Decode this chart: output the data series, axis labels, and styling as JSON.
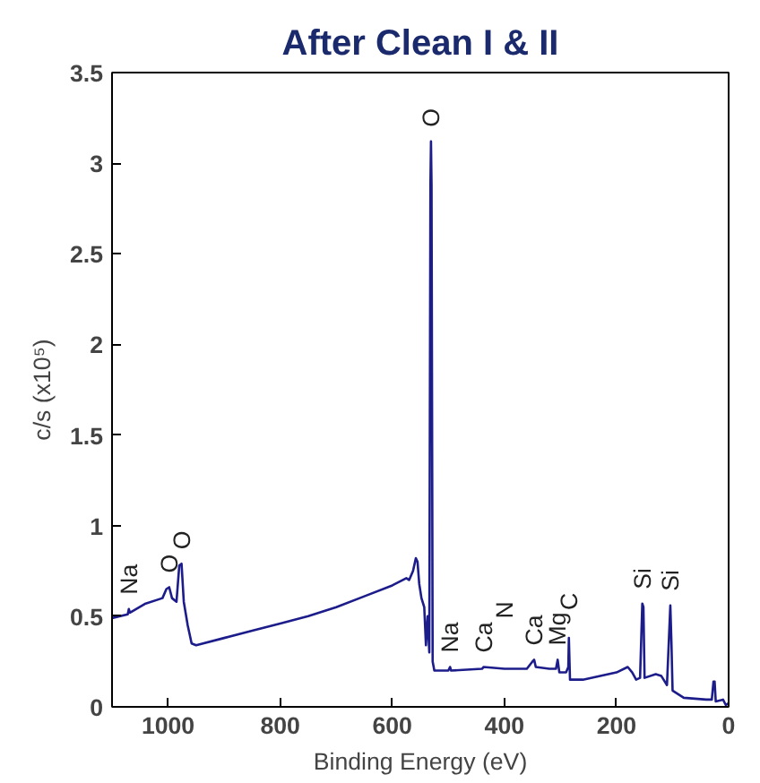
{
  "chart_data": {
    "type": "line",
    "title": "After Clean I & II",
    "xlabel": "Binding Energy (eV)",
    "ylabel": "c/s (x10⁵)",
    "xlim": [
      1100,
      0
    ],
    "xticks": [
      1000,
      800,
      600,
      400,
      200,
      0
    ],
    "ylim": [
      0,
      3.5
    ],
    "yticks": [
      0,
      0.5,
      1,
      1.5,
      2,
      2.5,
      3,
      3.5
    ],
    "grid": false,
    "marker": "none",
    "line_style": "solid",
    "series": [
      {
        "color": "#1c1c8a",
        "x": [
          1100,
          1072,
          1070,
          1068,
          1040,
          1010,
          1003,
          998,
          993,
          985,
          980,
          976,
          972,
          965,
          958,
          950,
          900,
          850,
          800,
          750,
          700,
          650,
          600,
          575,
          570,
          563,
          558,
          555,
          552,
          548,
          543,
          540,
          537,
          534,
          532,
          531,
          530,
          528,
          525,
          500,
          497,
          495,
          440,
          437,
          400,
          360,
          350,
          347,
          344,
          320,
          308,
          305,
          302,
          290,
          286,
          285,
          283,
          260,
          200,
          180,
          172,
          165,
          158,
          154,
          152,
          150,
          130,
          120,
          110,
          104,
          102,
          100,
          80,
          40,
          30,
          27,
          25,
          23,
          10,
          5,
          0
        ],
        "values": [
          0.49,
          0.51,
          0.54,
          0.52,
          0.57,
          0.6,
          0.65,
          0.66,
          0.6,
          0.58,
          0.78,
          0.79,
          0.58,
          0.45,
          0.35,
          0.34,
          0.38,
          0.42,
          0.46,
          0.5,
          0.55,
          0.61,
          0.67,
          0.71,
          0.7,
          0.75,
          0.82,
          0.8,
          0.68,
          0.6,
          0.55,
          0.34,
          0.5,
          0.3,
          2.88,
          3.12,
          2.88,
          0.25,
          0.2,
          0.2,
          0.22,
          0.2,
          0.21,
          0.22,
          0.21,
          0.21,
          0.25,
          0.26,
          0.22,
          0.21,
          0.21,
          0.26,
          0.19,
          0.19,
          0.22,
          0.38,
          0.15,
          0.15,
          0.19,
          0.22,
          0.19,
          0.15,
          0.16,
          0.57,
          0.55,
          0.16,
          0.18,
          0.17,
          0.12,
          0.56,
          0.35,
          0.09,
          0.05,
          0.04,
          0.04,
          0.14,
          0.14,
          0.03,
          0.04,
          0.01,
          0.02
        ]
      }
    ],
    "annotations": [
      {
        "text": "Na",
        "x": 1070,
        "y": 0.54
      },
      {
        "text": "O",
        "x": 998,
        "y": 0.66
      },
      {
        "text": "O",
        "x": 976,
        "y": 0.79
      },
      {
        "text": "O",
        "x": 531,
        "y": 3.12
      },
      {
        "text": "Na",
        "x": 497,
        "y": 0.22
      },
      {
        "text": "Ca",
        "x": 437,
        "y": 0.22
      },
      {
        "text": "N",
        "x": 400,
        "y": 0.21
      },
      {
        "text": "Ca",
        "x": 347,
        "y": 0.26
      },
      {
        "text": "Mg",
        "x": 305,
        "y": 0.26
      },
      {
        "text": "C",
        "x": 285,
        "y": 0.38
      },
      {
        "text": "Si",
        "x": 154,
        "y": 0.57
      },
      {
        "text": "Si",
        "x": 104,
        "y": 0.56
      }
    ]
  }
}
